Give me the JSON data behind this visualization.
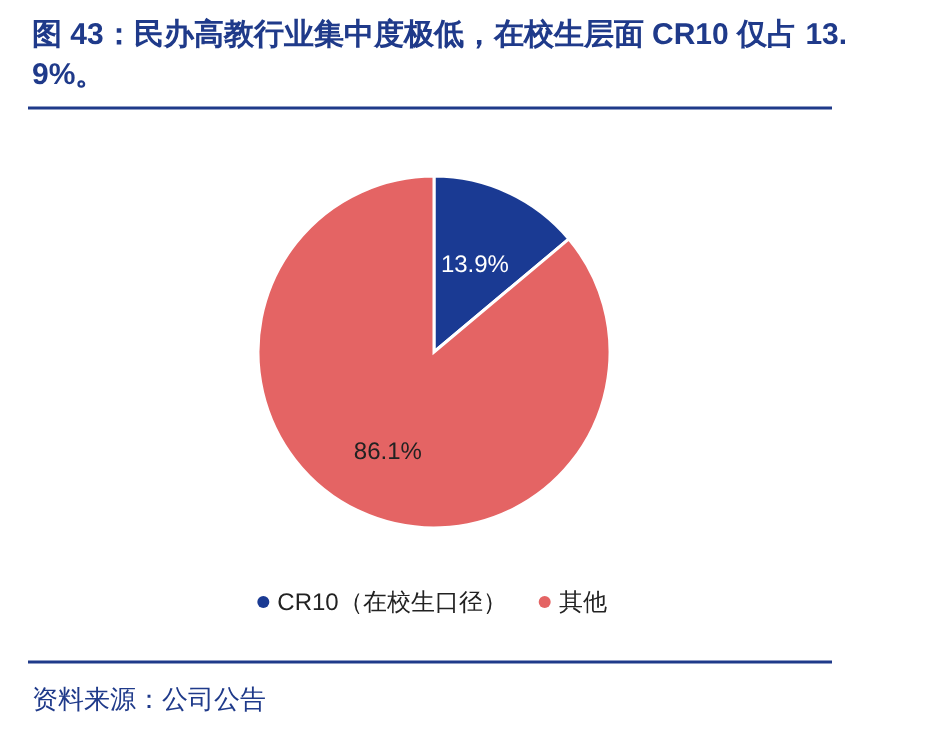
{
  "chart_data": {
    "type": "pie",
    "title": "图 43：民办高教行业集中度极低，在校生层面 CR10 仅占 13.9%。",
    "categories": [
      "CR10（在校生口径）",
      "其他"
    ],
    "values": [
      13.9,
      86.1
    ],
    "colors": [
      "#1a3a93",
      "#e46464"
    ],
    "value_labels": [
      "13.9%",
      "86.1%"
    ],
    "legend": "bottom",
    "annotations": [
      "资料来源：公司公告"
    ]
  }
}
